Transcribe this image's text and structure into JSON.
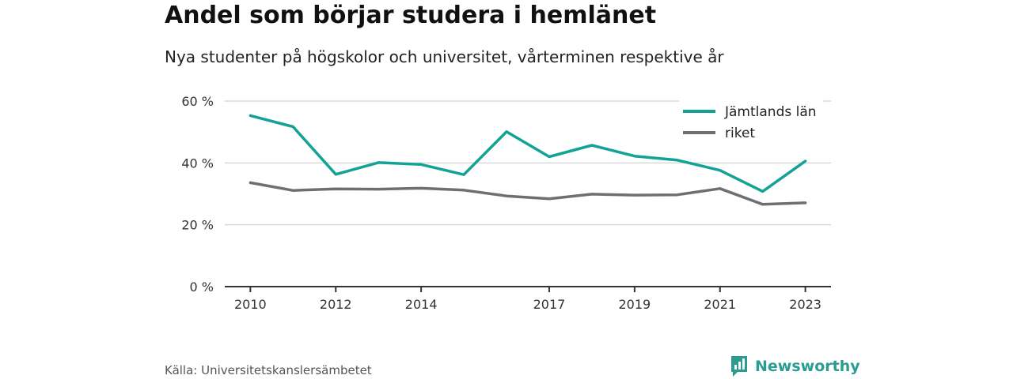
{
  "header": {
    "title": "Andel som börjar studera i hemlänet",
    "subtitle": "Nya studenter på högskolor och universitet, vårterminen respektive år"
  },
  "footer": {
    "source": "Källa: Universitetskanslersämbetet",
    "brand": "Newsworthy",
    "brand_icon": "bar-chart-speech-bubble-icon"
  },
  "colors": {
    "jamtland": "#12a396",
    "riket": "#6f6e73",
    "grid": "#d9d9d9",
    "axis": "#333333",
    "brand": "#2a9d90"
  },
  "chart_data": {
    "type": "line",
    "x": [
      2010,
      2011,
      2012,
      2013,
      2014,
      2015,
      2016,
      2017,
      2018,
      2019,
      2020,
      2021,
      2022,
      2023
    ],
    "x_tick_labels": [
      "2010",
      "2012",
      "2014",
      "2017",
      "2019",
      "2021",
      "2023"
    ],
    "y_ticks": [
      0,
      20,
      40,
      60
    ],
    "y_tick_labels": [
      "0 %",
      "20 %",
      "40 %",
      "60 %"
    ],
    "ylim": [
      0,
      60
    ],
    "xlim": [
      2009.4,
      2023.6
    ],
    "grid": "horizontal",
    "legend_position": "top-right",
    "series": [
      {
        "name": "Jämtlands län",
        "color": "#12a396",
        "values": [
          55.3,
          51.7,
          36.3,
          40.1,
          39.5,
          36.2,
          50.1,
          42.0,
          45.7,
          42.2,
          40.9,
          37.6,
          30.8,
          40.6
        ]
      },
      {
        "name": "riket",
        "color": "#6f6e73",
        "values": [
          33.6,
          31.1,
          31.6,
          31.5,
          31.8,
          31.2,
          29.3,
          28.4,
          29.9,
          29.6,
          29.7,
          31.7,
          26.6,
          27.1
        ]
      }
    ]
  }
}
